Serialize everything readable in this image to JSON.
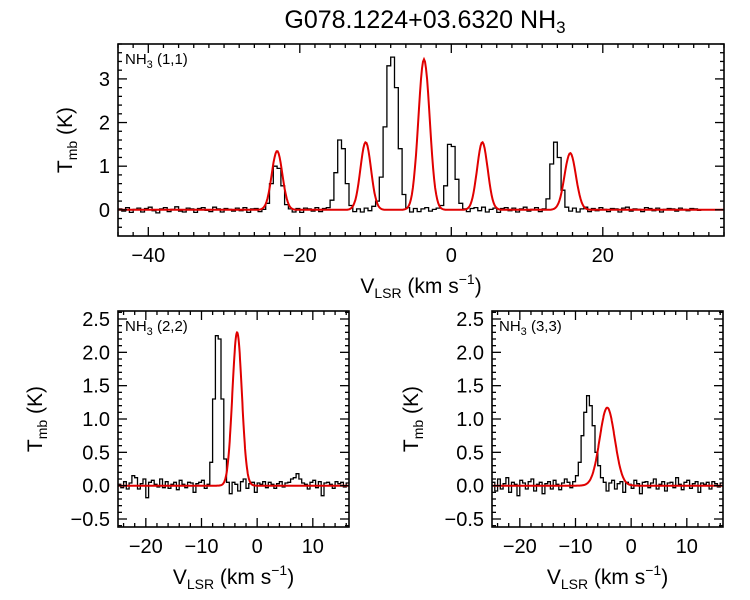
{
  "title": {
    "main": "G078.1224+03.6320 NH",
    "sub": "3"
  },
  "chart_data": [
    {
      "type": "line",
      "panel_label": {
        "pre": "NH",
        "sub": "3",
        "post": " (1,1)"
      },
      "xlabel": {
        "main": "V",
        "sub": "LSR",
        "unit": " (km s",
        "sup": "−1",
        "close": ")"
      },
      "ylabel": {
        "main": "T",
        "sub": "mb",
        "unit": " (K)"
      },
      "xlim": [
        -44,
        36
      ],
      "ylim": [
        -0.6,
        3.8
      ],
      "xticks": [
        -40,
        -20,
        0,
        20
      ],
      "xtick_labels": [
        "−40",
        "−20",
        "0",
        "20"
      ],
      "yticks": [
        0,
        1,
        2,
        3
      ],
      "ytick_labels": [
        "0",
        "1",
        "2",
        "3"
      ],
      "fit_components": [
        {
          "center": -23.0,
          "amp": 1.35,
          "sigma": 0.7
        },
        {
          "center": -11.3,
          "amp": 1.55,
          "sigma": 0.7
        },
        {
          "center": -3.6,
          "amp": 3.45,
          "sigma": 0.75
        },
        {
          "center": 4.1,
          "amp": 1.55,
          "sigma": 0.7
        },
        {
          "center": 15.7,
          "amp": 1.3,
          "sigma": 0.75
        }
      ],
      "series": [
        {
          "role": "observed",
          "color": "#000000",
          "x_start": -44,
          "x_step": 0.5,
          "values": [
            0.02,
            -0.03,
            0.05,
            -0.06,
            0.01,
            0.04,
            -0.05,
            0.03,
            0.06,
            -0.02,
            -0.07,
            0.02,
            0.05,
            -0.04,
            0.01,
            0.07,
            -0.03,
            -0.05,
            0.04,
            0.02,
            -0.06,
            0.03,
            0.05,
            -0.01,
            -0.04,
            0.06,
            0.02,
            -0.05,
            0.03,
            0.01,
            -0.03,
            0.04,
            -0.02,
            0.05,
            -0.06,
            0.02,
            0.03,
            -0.04,
            0.01,
            0.15,
            0.6,
            1.0,
            0.95,
            0.55,
            0.12,
            0.02,
            -0.05,
            0.03,
            -0.06,
            0.04,
            0.02,
            -0.03,
            0.05,
            -0.04,
            0.03,
            0.05,
            0.22,
            0.85,
            1.6,
            1.4,
            0.6,
            0.1,
            -0.04,
            0.02,
            -0.05,
            0.04,
            -0.02,
            0.08,
            0.2,
            0.75,
            1.9,
            3.3,
            3.5,
            2.8,
            1.4,
            0.35,
            0.05,
            -0.05,
            0.03,
            -0.04,
            0.02,
            0.05,
            -0.03,
            0.01,
            0.04,
            0.1,
            0.55,
            1.5,
            1.45,
            0.7,
            0.15,
            0.02,
            -0.04,
            0.03,
            0.05,
            -0.02,
            0.06,
            -0.05,
            0.01,
            0.04,
            -0.06,
            0.03,
            0.05,
            -0.02,
            0.04,
            -0.05,
            0.02,
            0.06,
            -0.03,
            0.01,
            0.05,
            -0.04,
            0.02,
            0.25,
            1.05,
            1.55,
            1.2,
            0.45,
            0.06,
            -0.03,
            0.04,
            -0.05,
            0.02,
            0.06,
            -0.04,
            0.03,
            -0.02,
            0.05,
            0.01,
            -0.04,
            0.03,
            0.02,
            -0.05,
            0.04,
            0.06,
            -0.03,
            0.02,
            0.01,
            -0.04,
            0.05,
            0.03,
            -0.02,
            0.04,
            -0.05,
            0.01,
            0.03,
            0.02,
            -0.03,
            0.04,
            0.01,
            -0.02,
            0.03,
            0.02,
            -0.01
          ]
        },
        {
          "role": "model",
          "color": "#e00000"
        }
      ]
    },
    {
      "type": "line",
      "panel_label": {
        "pre": "NH",
        "sub": "3",
        "post": " (2,2)"
      },
      "xlabel": {
        "main": "V",
        "sub": "LSR",
        "unit": " (km s",
        "sup": "−1",
        "close": ")"
      },
      "ylabel": {
        "main": "T",
        "sub": "mb",
        "unit": " (K)"
      },
      "xlim": [
        -25,
        16.5
      ],
      "ylim": [
        -0.62,
        2.62
      ],
      "xticks": [
        -20,
        -10,
        0,
        10
      ],
      "xtick_labels": [
        "−20",
        "−10",
        "0",
        "10"
      ],
      "yticks": [
        -0.5,
        0.0,
        0.5,
        1.0,
        1.5,
        2.0,
        2.5
      ],
      "ytick_labels": [
        "−0.5",
        "0.0",
        "0.5",
        "1.0",
        "1.5",
        "2.0",
        "2.5"
      ],
      "fit_components": [
        {
          "center": -3.6,
          "amp": 2.3,
          "sigma": 0.85
        }
      ],
      "series": [
        {
          "role": "observed",
          "color": "#000000",
          "x_start": -25,
          "x_step": 0.5,
          "values": [
            0.02,
            -0.03,
            0.06,
            -0.05,
            0.04,
            0.15,
            0.12,
            -0.05,
            0.03,
            0.1,
            -0.18,
            0.05,
            0.08,
            0.02,
            -0.02,
            0.1,
            -0.03,
            0.06,
            -0.04,
            0.02,
            0.05,
            -0.06,
            0.08,
            0.02,
            -0.03,
            0.05,
            0.04,
            -0.1,
            0.03,
            0.05,
            0.08,
            -0.04,
            0.02,
            0.35,
            1.3,
            2.25,
            2.2,
            1.3,
            0.4,
            0.05,
            -0.12,
            0.05,
            0.02,
            -0.08,
            0.06,
            0.1,
            -0.04,
            0.03,
            0.05,
            -0.1,
            0.04,
            0.02,
            0.06,
            -0.03,
            0.05,
            0.02,
            -0.04,
            0.03,
            0.06,
            -0.02,
            0.04,
            0.05,
            0.1,
            0.12,
            0.18,
            0.1,
            0.04,
            0.02,
            -0.05,
            0.05,
            0.08,
            -0.03,
            0.06,
            -0.15,
            0.04,
            0.05,
            0.02,
            -0.04,
            0.06,
            0.03,
            0.05,
            -0.02,
            0.04,
            0.05
          ]
        },
        {
          "role": "model",
          "color": "#e00000"
        }
      ]
    },
    {
      "type": "line",
      "panel_label": {
        "pre": "NH",
        "sub": "3",
        "post": " (3,3)"
      },
      "xlabel": {
        "main": "V",
        "sub": "LSR",
        "unit": " (km s",
        "sup": "−1",
        "close": ")"
      },
      "ylabel": {
        "main": "T",
        "sub": "mb",
        "unit": " (K)"
      },
      "xlim": [
        -25,
        16.5
      ],
      "ylim": [
        -0.62,
        2.62
      ],
      "xticks": [
        -20,
        -10,
        0,
        10
      ],
      "xtick_labels": [
        "−20",
        "−10",
        "0",
        "10"
      ],
      "yticks": [
        -0.5,
        0.0,
        0.5,
        1.0,
        1.5,
        2.0,
        2.5
      ],
      "ytick_labels": [
        "−0.5",
        "0.0",
        "0.5",
        "1.0",
        "1.5",
        "2.0",
        "2.5"
      ],
      "fit_components": [
        {
          "center": -4.3,
          "amp": 1.17,
          "sigma": 1.35
        }
      ],
      "series": [
        {
          "role": "observed",
          "color": "#000000",
          "x_start": -25,
          "x_step": 0.5,
          "values": [
            0.05,
            -0.08,
            0.1,
            -0.05,
            0.03,
            0.12,
            -0.1,
            0.05,
            0.02,
            -0.15,
            0.08,
            0.04,
            -0.05,
            0.06,
            0.1,
            -0.08,
            0.02,
            0.05,
            -0.12,
            0.03,
            0.06,
            -0.05,
            0.08,
            0.02,
            -0.06,
            0.04,
            0.1,
            0.05,
            -0.03,
            0.06,
            0.15,
            0.35,
            0.75,
            1.1,
            1.35,
            1.2,
            0.9,
            0.5,
            0.3,
            0.12,
            0.05,
            -0.08,
            0.04,
            0.08,
            -0.05,
            0.03,
            0.06,
            -0.1,
            0.05,
            0.02,
            -0.04,
            0.08,
            0.03,
            -0.12,
            0.05,
            0.06,
            -0.03,
            0.04,
            0.1,
            -0.05,
            0.02,
            0.06,
            -0.08,
            0.04,
            0.05,
            -0.03,
            0.12,
            0.02,
            -0.06,
            0.05,
            0.08,
            -0.04,
            0.03,
            0.06,
            -0.1,
            0.04,
            0.02,
            0.05,
            -0.05,
            0.06,
            0.03,
            -0.02,
            0.04,
            0.05
          ]
        },
        {
          "role": "model",
          "color": "#e00000"
        }
      ]
    }
  ]
}
